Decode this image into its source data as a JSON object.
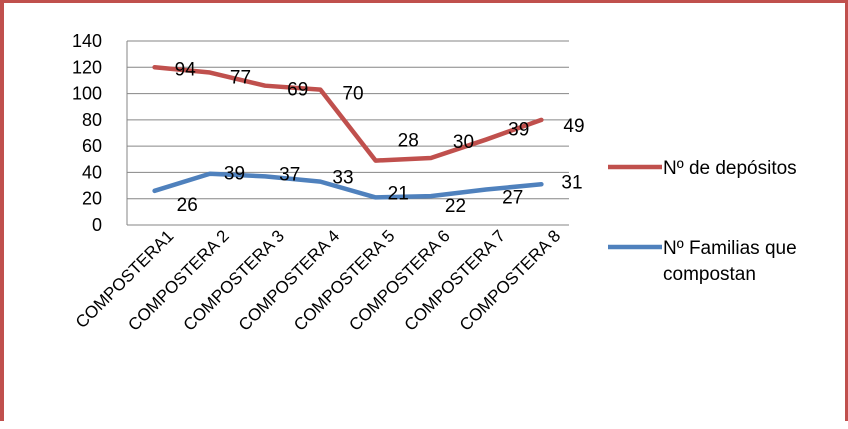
{
  "chart_data": {
    "type": "line",
    "title": "",
    "xlabel": "",
    "ylabel": "",
    "categories": [
      "COMPOSTERA1",
      "COMPOSTERA 2",
      "COMPOSTERA 3",
      "COMPOSTERA 4",
      "COMPOSTERA 5",
      "COMPOSTERA 6",
      "COMPOSTERA 7",
      "COMPOSTERA 8"
    ],
    "ylim": [
      0,
      140
    ],
    "yticks": [
      0,
      20,
      40,
      60,
      80,
      100,
      120,
      140
    ],
    "grid": true,
    "legend_position": "right",
    "series": [
      {
        "name": "Nº de depósitos",
        "color": "#c0504d",
        "values": [
          120,
          116,
          106,
          103,
          49,
          51,
          65,
          80
        ],
        "data_labels": [
          "94",
          "77",
          "69",
          "70",
          "28",
          "30",
          "39",
          "49"
        ]
      },
      {
        "name": "Nº Familias que compostan",
        "color": "#4f81bd",
        "values": [
          26,
          39,
          37,
          33,
          21,
          22,
          27,
          31
        ],
        "data_labels": [
          "26",
          "39",
          "37",
          "33",
          "21",
          "22",
          "27",
          "31"
        ]
      }
    ]
  }
}
